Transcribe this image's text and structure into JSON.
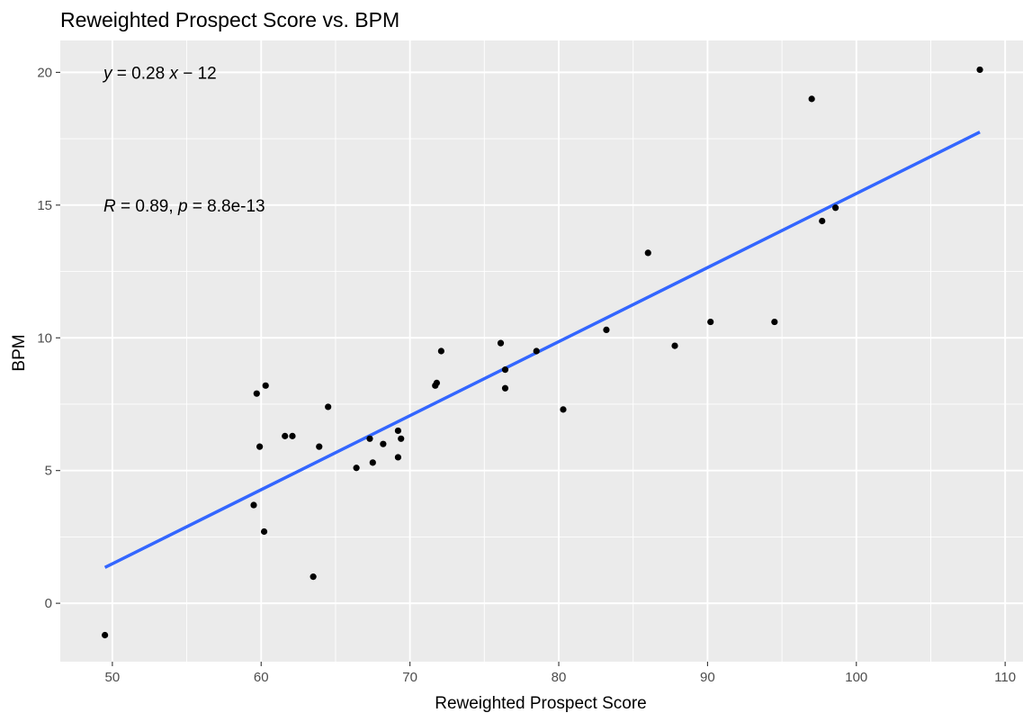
{
  "chart_data": {
    "type": "scatter",
    "title": "Reweighted Prospect Score vs. BPM",
    "xlabel": "Reweighted Prospect Score",
    "ylabel": "BPM",
    "xlim": [
      46.5,
      111.2
    ],
    "ylim": [
      -2.2,
      21.2
    ],
    "xticks": [
      50,
      60,
      70,
      80,
      90,
      100,
      110
    ],
    "yticks": [
      0,
      5,
      10,
      15,
      20
    ],
    "x_tick_labels": [
      "50",
      "60",
      "70",
      "80",
      "90",
      "100",
      "110"
    ],
    "y_tick_labels": [
      "0",
      "5",
      "10",
      "15",
      "20"
    ],
    "grid": true,
    "background_color": "#ebebeb",
    "grid_color": "#ffffff",
    "point_color": "#000000",
    "fit_line_color": "#3366ff",
    "points": [
      {
        "x": 49.5,
        "y": -1.2
      },
      {
        "x": 59.5,
        "y": 3.7
      },
      {
        "x": 59.7,
        "y": 7.9
      },
      {
        "x": 59.9,
        "y": 5.9
      },
      {
        "x": 60.2,
        "y": 2.7
      },
      {
        "x": 60.3,
        "y": 8.2
      },
      {
        "x": 61.6,
        "y": 6.3
      },
      {
        "x": 62.1,
        "y": 6.3
      },
      {
        "x": 63.5,
        "y": 1.0
      },
      {
        "x": 63.9,
        "y": 5.9
      },
      {
        "x": 64.5,
        "y": 7.4
      },
      {
        "x": 66.4,
        "y": 5.1
      },
      {
        "x": 67.3,
        "y": 6.2
      },
      {
        "x": 67.5,
        "y": 5.3
      },
      {
        "x": 68.2,
        "y": 6.0
      },
      {
        "x": 69.2,
        "y": 6.5
      },
      {
        "x": 69.2,
        "y": 5.5
      },
      {
        "x": 69.4,
        "y": 6.2
      },
      {
        "x": 71.7,
        "y": 8.2
      },
      {
        "x": 71.8,
        "y": 8.3
      },
      {
        "x": 72.1,
        "y": 9.5
      },
      {
        "x": 76.1,
        "y": 9.8
      },
      {
        "x": 76.4,
        "y": 8.8
      },
      {
        "x": 76.4,
        "y": 8.1
      },
      {
        "x": 78.5,
        "y": 9.5
      },
      {
        "x": 80.3,
        "y": 7.3
      },
      {
        "x": 83.2,
        "y": 10.3
      },
      {
        "x": 86.0,
        "y": 13.2
      },
      {
        "x": 87.8,
        "y": 9.7
      },
      {
        "x": 90.2,
        "y": 10.6
      },
      {
        "x": 94.5,
        "y": 10.6
      },
      {
        "x": 97.0,
        "y": 19.0
      },
      {
        "x": 97.7,
        "y": 14.4
      },
      {
        "x": 98.6,
        "y": 14.9
      },
      {
        "x": 108.3,
        "y": 20.1
      }
    ],
    "fit_line": {
      "x": [
        49.5,
        108.3
      ],
      "y": [
        1.35,
        17.75
      ]
    },
    "annotations": {
      "equation": {
        "parts": [
          {
            "text": "y",
            "italic": true
          },
          {
            "text": " = 0.28 ",
            "italic": false
          },
          {
            "text": "x",
            "italic": true
          },
          {
            "text": " − 12",
            "italic": false
          }
        ]
      },
      "correlation": {
        "parts": [
          {
            "text": "R",
            "italic": true
          },
          {
            "text": " = 0.89, ",
            "italic": false
          },
          {
            "text": "p",
            "italic": true
          },
          {
            "text": " = 8.8e-13",
            "italic": false
          }
        ]
      }
    }
  }
}
